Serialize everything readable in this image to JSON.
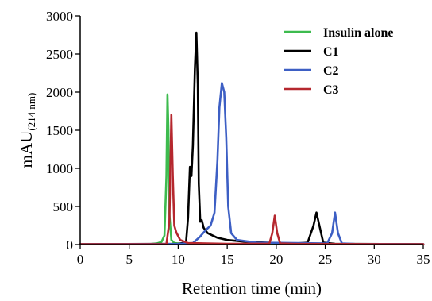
{
  "chart_data": {
    "type": "line",
    "xlabel": "Retention time (min)",
    "ylabel": "mAU",
    "ylabel_subscript": "(214 nm)",
    "xlim": [
      0,
      35
    ],
    "ylim": [
      0,
      3000
    ],
    "xticks": [
      0,
      5,
      10,
      15,
      20,
      25,
      30,
      35
    ],
    "yticks": [
      0,
      500,
      1000,
      1500,
      2000,
      2500,
      3000
    ],
    "grid": false,
    "legend_position": "top-right",
    "series": [
      {
        "name": "Insulin alone",
        "color": "#3dbb4e",
        "points": [
          [
            0,
            3
          ],
          [
            7,
            5
          ],
          [
            7.8,
            15
          ],
          [
            8.3,
            35
          ],
          [
            8.6,
            120
          ],
          [
            8.8,
            900
          ],
          [
            8.9,
            1970
          ],
          [
            9.0,
            1500
          ],
          [
            9.1,
            400
          ],
          [
            9.3,
            60
          ],
          [
            9.6,
            20
          ],
          [
            10.5,
            8
          ],
          [
            15,
            5
          ],
          [
            35,
            3
          ]
        ]
      },
      {
        "name": "C1",
        "color": "#000000",
        "points": [
          [
            0,
            5
          ],
          [
            10,
            10
          ],
          [
            10.8,
            30
          ],
          [
            11.0,
            350
          ],
          [
            11.2,
            1020
          ],
          [
            11.35,
            900
          ],
          [
            11.5,
            1300
          ],
          [
            11.7,
            2300
          ],
          [
            11.85,
            2780
          ],
          [
            12.0,
            2100
          ],
          [
            12.1,
            800
          ],
          [
            12.25,
            300
          ],
          [
            12.4,
            320
          ],
          [
            12.6,
            220
          ],
          [
            13,
            150
          ],
          [
            14,
            90
          ],
          [
            15,
            60
          ],
          [
            17,
            35
          ],
          [
            20,
            20
          ],
          [
            22,
            15
          ],
          [
            23.2,
            25
          ],
          [
            23.8,
            250
          ],
          [
            24.1,
            420
          ],
          [
            24.4,
            250
          ],
          [
            24.8,
            25
          ],
          [
            26,
            10
          ],
          [
            35,
            5
          ]
        ]
      },
      {
        "name": "C2",
        "color": "#3d5fc4",
        "points": [
          [
            0,
            5
          ],
          [
            10,
            8
          ],
          [
            11.5,
            20
          ],
          [
            12.2,
            100
          ],
          [
            12.8,
            190
          ],
          [
            13.3,
            250
          ],
          [
            13.7,
            420
          ],
          [
            14.0,
            1100
          ],
          [
            14.2,
            1800
          ],
          [
            14.45,
            2120
          ],
          [
            14.7,
            2000
          ],
          [
            14.9,
            1400
          ],
          [
            15.1,
            500
          ],
          [
            15.4,
            150
          ],
          [
            16,
            60
          ],
          [
            18,
            25
          ],
          [
            22,
            20
          ],
          [
            25.2,
            15
          ],
          [
            25.7,
            150
          ],
          [
            26.0,
            420
          ],
          [
            26.3,
            150
          ],
          [
            26.7,
            15
          ],
          [
            28,
            8
          ],
          [
            35,
            5
          ]
        ]
      },
      {
        "name": "C3",
        "color": "#b5272e",
        "points": [
          [
            0,
            4
          ],
          [
            8.8,
            6
          ],
          [
            9.1,
            300
          ],
          [
            9.3,
            1700
          ],
          [
            9.45,
            900
          ],
          [
            9.6,
            250
          ],
          [
            9.8,
            160
          ],
          [
            10.2,
            60
          ],
          [
            11,
            20
          ],
          [
            15,
            10
          ],
          [
            19.3,
            12
          ],
          [
            19.6,
            150
          ],
          [
            19.85,
            380
          ],
          [
            20.1,
            150
          ],
          [
            20.4,
            15
          ],
          [
            22,
            8
          ],
          [
            35,
            4
          ]
        ]
      }
    ]
  }
}
